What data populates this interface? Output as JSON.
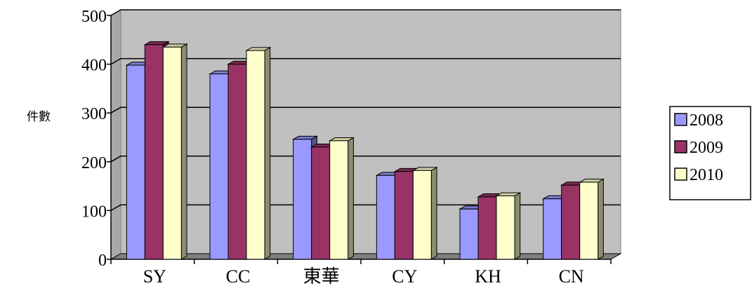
{
  "chart_data": {
    "type": "bar",
    "title": "",
    "xlabel": "",
    "ylabel": "件數",
    "ylim": [
      0,
      500
    ],
    "yticks": [
      0,
      100,
      200,
      300,
      400,
      500
    ],
    "grid": true,
    "legend_position": "right",
    "categories": [
      "SY",
      "CC",
      "東華",
      "CY",
      "KH",
      "CN"
    ],
    "series": [
      {
        "name": "2008",
        "color": "#9999ff",
        "values": [
          398,
          380,
          246,
          172,
          103,
          124
        ]
      },
      {
        "name": "2009",
        "color": "#993366",
        "values": [
          440,
          400,
          230,
          180,
          128,
          152
        ]
      },
      {
        "name": "2010",
        "color": "#ffffcc",
        "values": [
          435,
          428,
          243,
          182,
          130,
          158
        ]
      }
    ]
  },
  "colors": {
    "plot_background": "#c0c0c0",
    "floor": "#808080",
    "gridline": "#000000"
  }
}
